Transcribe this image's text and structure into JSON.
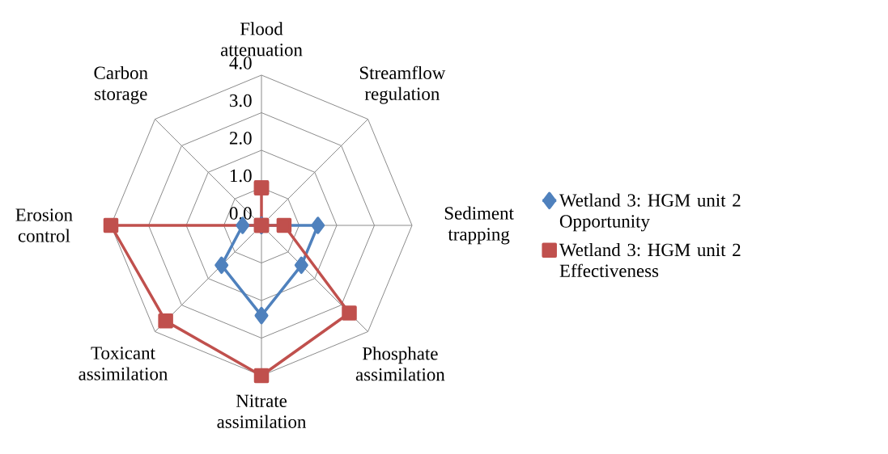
{
  "chart_data": {
    "type": "radar",
    "categories": [
      "Flood attenuation",
      "Streamflow regulation",
      "Sediment trapping",
      "Phosphate assimilation",
      "Nitrate assimilation",
      "Toxicant assimilation",
      "Erosion control",
      "Carbon storage"
    ],
    "ylim": [
      0,
      4
    ],
    "yticks": [
      {
        "value": 0,
        "label": "0.0"
      },
      {
        "value": 1,
        "label": "1.0"
      },
      {
        "value": 2,
        "label": "2.0"
      },
      {
        "value": 3,
        "label": "3.0"
      },
      {
        "value": 4,
        "label": "4.0"
      }
    ],
    "grid": true,
    "legend": "right",
    "series": [
      {
        "name": "Wetland 3: HGM unit 2 Opportunity",
        "color": "#4f81bd",
        "marker": "diamond",
        "values": [
          0,
          0,
          1.5,
          1.5,
          2.4,
          1.5,
          0.5,
          0
        ]
      },
      {
        "name": "Wetland 3: HGM unit 2 Effectiveness",
        "color": "#c0504d",
        "marker": "square",
        "values": [
          1.0,
          0,
          0.6,
          3.3,
          4.0,
          3.6,
          4.0,
          0
        ]
      }
    ]
  }
}
